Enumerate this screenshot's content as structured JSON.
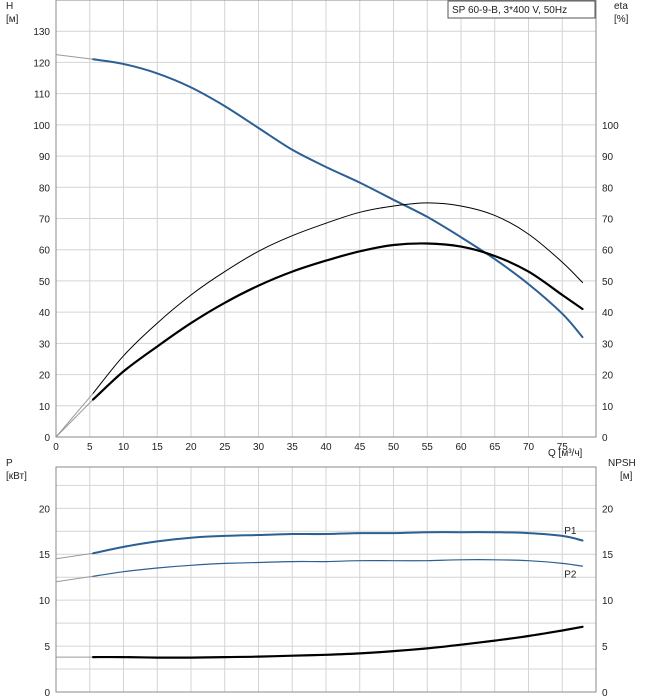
{
  "legend": "SP 60-9-B, 3*400 V, 50Hz",
  "chart_data": [
    {
      "type": "line",
      "panel": "head-efficiency",
      "x_axis": {
        "label": "Q [м³/ч]",
        "range": [
          0,
          80
        ],
        "ticks": [
          0,
          5,
          10,
          15,
          20,
          25,
          30,
          35,
          40,
          45,
          50,
          55,
          60,
          65,
          70,
          75
        ]
      },
      "y_left": {
        "label": "H",
        "unit": "[м]",
        "range": [
          0,
          140
        ],
        "ticks": [
          0,
          10,
          20,
          30,
          40,
          50,
          60,
          70,
          80,
          90,
          100,
          110,
          120,
          130
        ]
      },
      "y_right": {
        "label": "eta",
        "unit": "[%]",
        "range": [
          0,
          140
        ],
        "ticks": [
          0,
          10,
          20,
          30,
          40,
          50,
          60,
          70,
          80,
          90,
          100
        ]
      },
      "series": [
        {
          "id": "H",
          "color": "#2c5f94",
          "width": 2,
          "extension": [
            [
              0,
              122.5
            ],
            [
              5.5,
              121
            ]
          ],
          "points": [
            [
              5.5,
              121
            ],
            [
              10,
              119.5
            ],
            [
              15,
              116.5
            ],
            [
              20,
              112
            ],
            [
              25,
              106
            ],
            [
              30,
              99
            ],
            [
              35,
              92
            ],
            [
              40,
              86.5
            ],
            [
              45,
              81.5
            ],
            [
              50,
              76
            ],
            [
              55,
              70.5
            ],
            [
              60,
              64
            ],
            [
              65,
              57
            ],
            [
              70,
              49
            ],
            [
              75,
              39.5
            ],
            [
              78,
              32
            ]
          ]
        },
        {
          "id": "eta-thin",
          "color": "#000000",
          "width": 1,
          "extension": [
            [
              0,
              0
            ],
            [
              5.5,
              14
            ]
          ],
          "points": [
            [
              5.5,
              14
            ],
            [
              10,
              26
            ],
            [
              15,
              36.5
            ],
            [
              20,
              45.5
            ],
            [
              25,
              53
            ],
            [
              30,
              59.5
            ],
            [
              35,
              64.5
            ],
            [
              40,
              68.5
            ],
            [
              45,
              72
            ],
            [
              50,
              74
            ],
            [
              55,
              75
            ],
            [
              60,
              74
            ],
            [
              65,
              71
            ],
            [
              70,
              65
            ],
            [
              75,
              56
            ],
            [
              78,
              49.5
            ]
          ]
        },
        {
          "id": "eta-thick",
          "color": "#000000",
          "width": 2.2,
          "extension": [
            [
              0,
              0
            ],
            [
              5.5,
              12
            ]
          ],
          "points": [
            [
              5.5,
              12
            ],
            [
              10,
              21
            ],
            [
              15,
              29
            ],
            [
              20,
              36.5
            ],
            [
              25,
              43
            ],
            [
              30,
              48.5
            ],
            [
              35,
              53
            ],
            [
              40,
              56.5
            ],
            [
              45,
              59.5
            ],
            [
              50,
              61.5
            ],
            [
              55,
              62
            ],
            [
              60,
              61
            ],
            [
              65,
              58
            ],
            [
              70,
              53
            ],
            [
              75,
              45.5
            ],
            [
              78,
              41
            ]
          ]
        }
      ]
    },
    {
      "type": "line",
      "panel": "power-npsh",
      "x_axis": {
        "range": [
          0,
          80
        ]
      },
      "y_left": {
        "label": "P",
        "unit": "[кВт]",
        "range": [
          0,
          24.5
        ],
        "ticks": [
          0,
          5,
          10,
          15,
          20
        ]
      },
      "y_right": {
        "label": "NPSH",
        "unit": "[м]",
        "range": [
          0,
          24.5
        ],
        "ticks": [
          0,
          5,
          10,
          15,
          20
        ]
      },
      "series": [
        {
          "id": "P1",
          "name": "P1",
          "color": "#2c5f94",
          "width": 2,
          "extension": [
            [
              0,
              14.5
            ],
            [
              5.5,
              15.1
            ]
          ],
          "points": [
            [
              5.5,
              15.1
            ],
            [
              10,
              15.8
            ],
            [
              15,
              16.4
            ],
            [
              20,
              16.8
            ],
            [
              25,
              17
            ],
            [
              30,
              17.1
            ],
            [
              35,
              17.2
            ],
            [
              40,
              17.2
            ],
            [
              45,
              17.3
            ],
            [
              50,
              17.3
            ],
            [
              55,
              17.4
            ],
            [
              60,
              17.4
            ],
            [
              65,
              17.4
            ],
            [
              70,
              17.3
            ],
            [
              75,
              17
            ],
            [
              78,
              16.5
            ]
          ]
        },
        {
          "id": "P2",
          "name": "P2",
          "color": "#2c5f94",
          "width": 1.2,
          "extension": [
            [
              0,
              12
            ],
            [
              5.5,
              12.6
            ]
          ],
          "points": [
            [
              5.5,
              12.6
            ],
            [
              10,
              13.1
            ],
            [
              15,
              13.5
            ],
            [
              20,
              13.8
            ],
            [
              25,
              14
            ],
            [
              30,
              14.1
            ],
            [
              35,
              14.2
            ],
            [
              40,
              14.2
            ],
            [
              45,
              14.3
            ],
            [
              50,
              14.3
            ],
            [
              55,
              14.3
            ],
            [
              60,
              14.4
            ],
            [
              65,
              14.4
            ],
            [
              70,
              14.3
            ],
            [
              75,
              14
            ],
            [
              78,
              13.7
            ]
          ]
        },
        {
          "id": "NPSH",
          "color": "#000000",
          "width": 2.2,
          "extension": [
            [
              0,
              3.8
            ],
            [
              5.5,
              3.8
            ]
          ],
          "points": [
            [
              5.5,
              3.8
            ],
            [
              10,
              3.8
            ],
            [
              15,
              3.75
            ],
            [
              20,
              3.75
            ],
            [
              25,
              3.8
            ],
            [
              30,
              3.85
            ],
            [
              35,
              3.95
            ],
            [
              40,
              4.05
            ],
            [
              45,
              4.2
            ],
            [
              50,
              4.45
            ],
            [
              55,
              4.75
            ],
            [
              60,
              5.15
            ],
            [
              65,
              5.6
            ],
            [
              70,
              6.1
            ],
            [
              75,
              6.7
            ],
            [
              78,
              7.1
            ]
          ]
        }
      ]
    }
  ]
}
